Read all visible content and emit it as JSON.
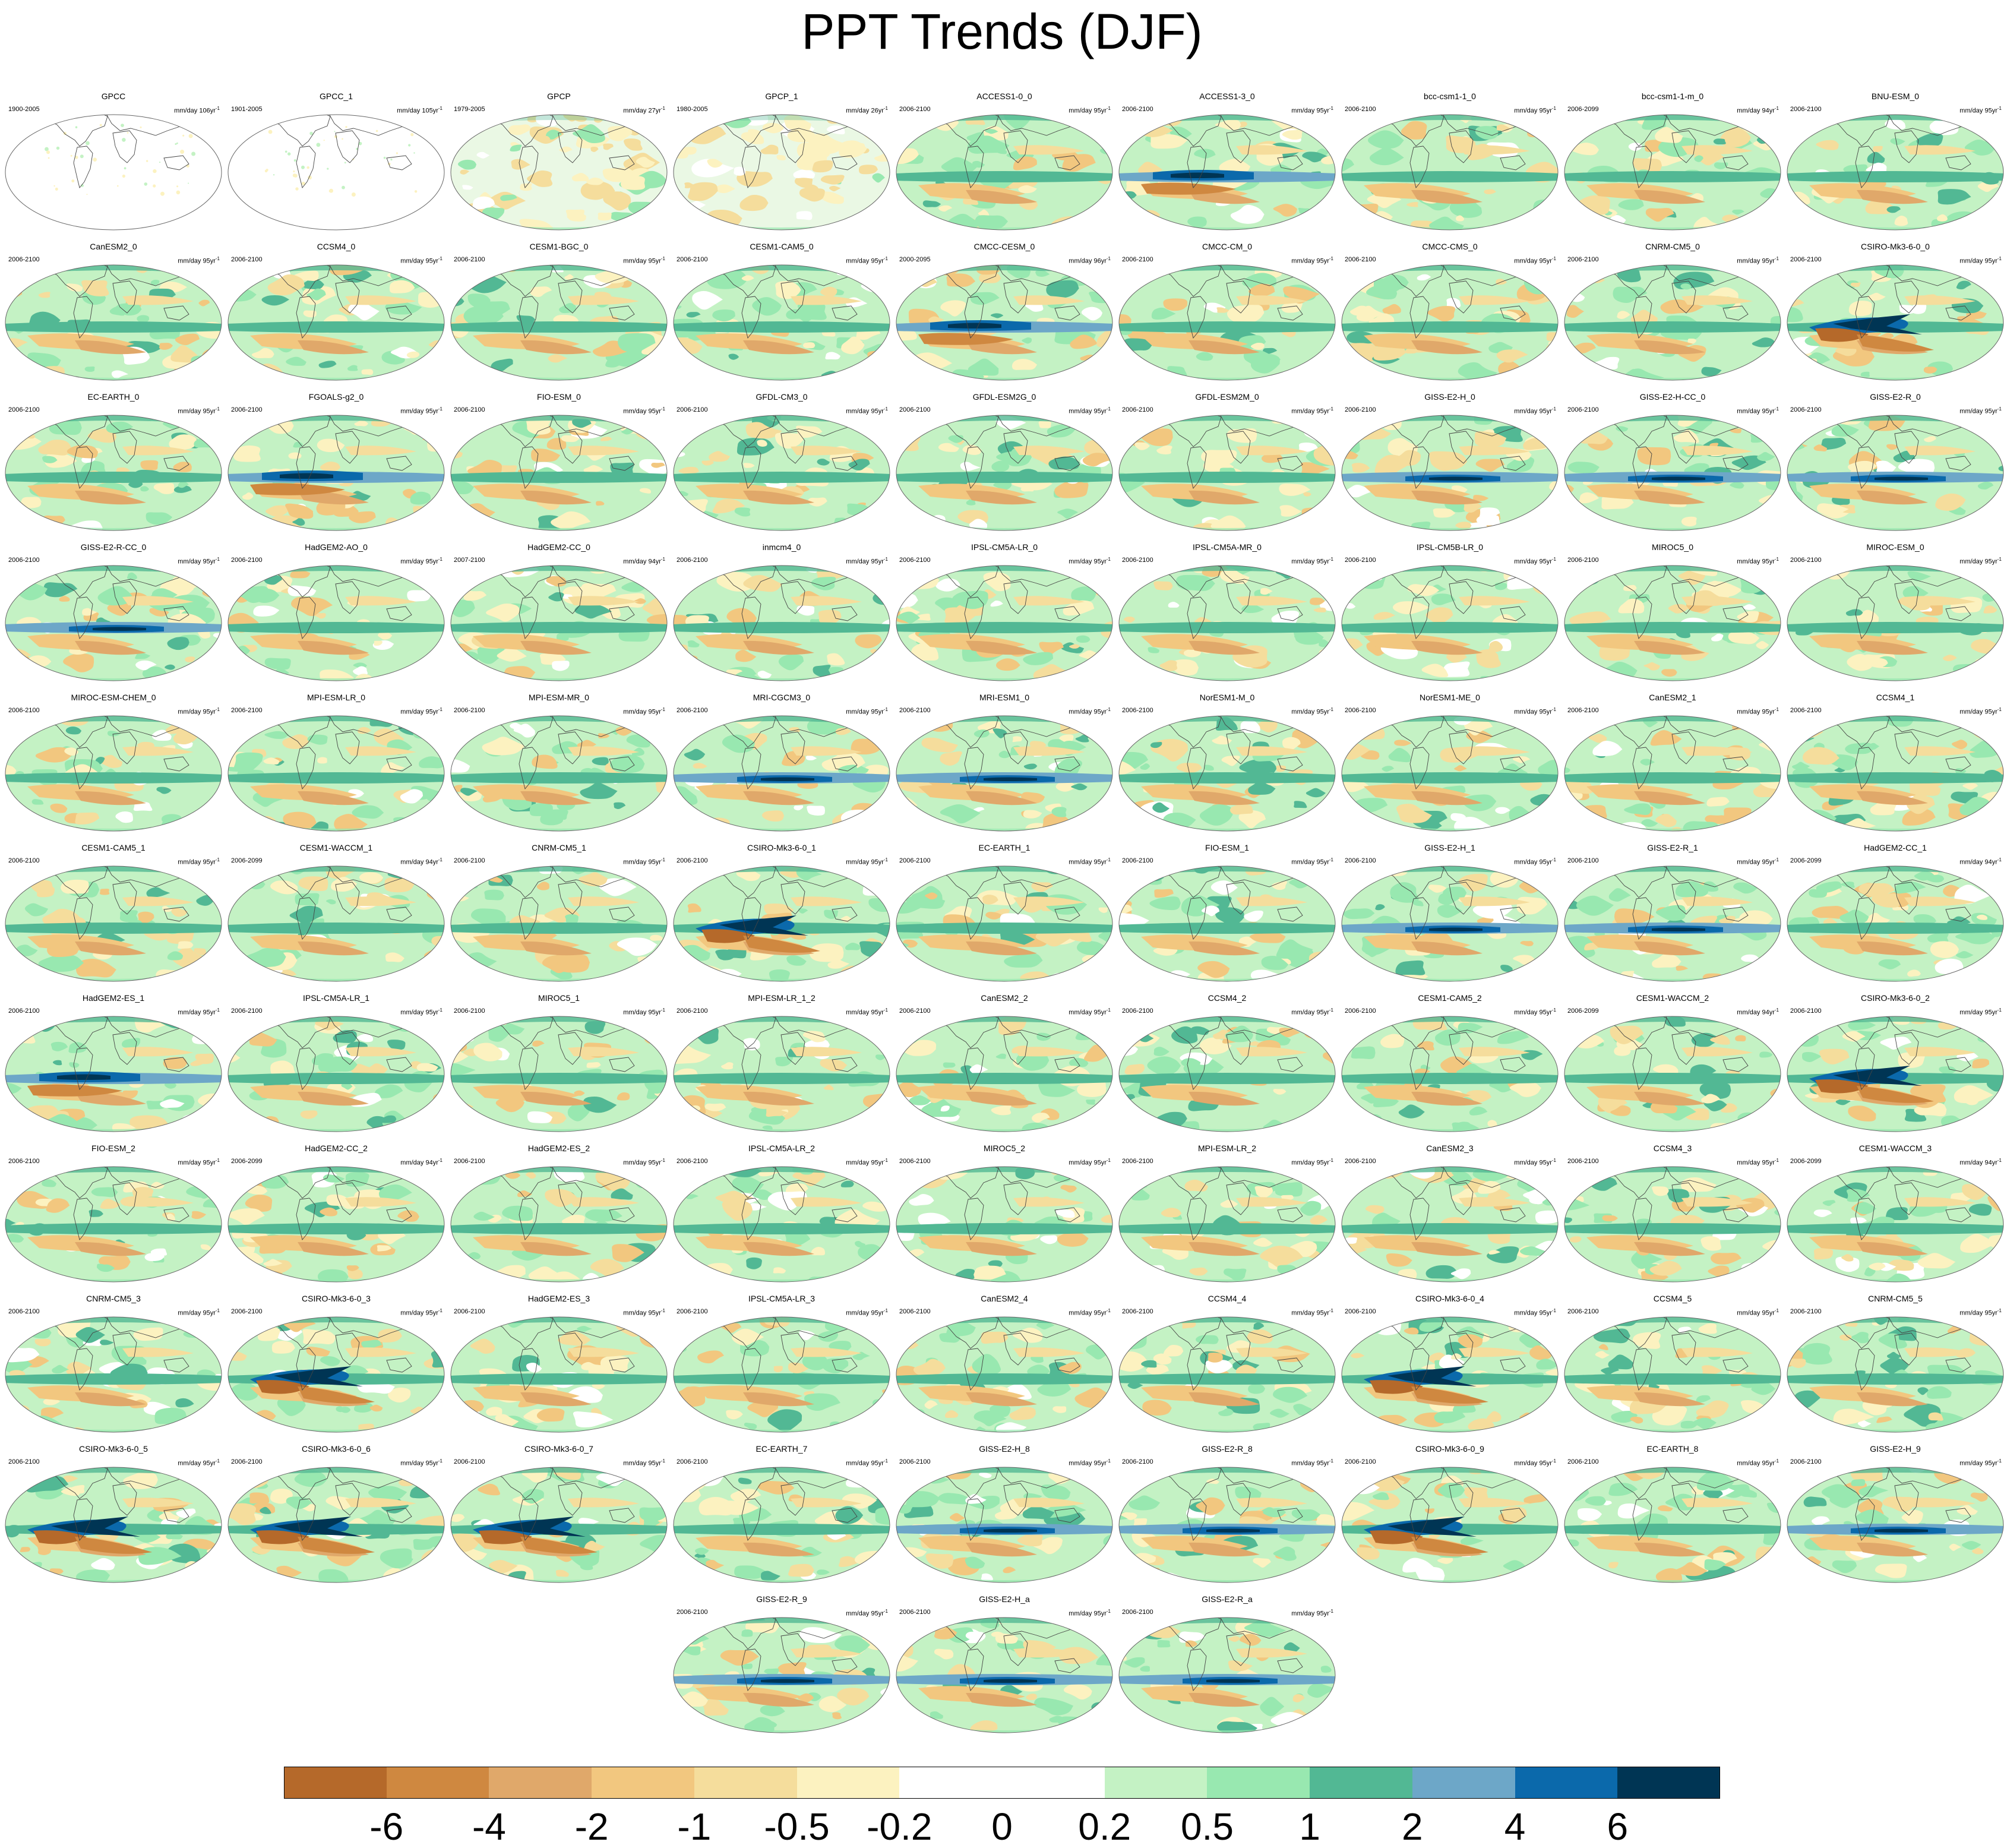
{
  "title": "PPT Trends (DJF)",
  "units_template": "mm/day {n}yr",
  "units_superscript": "-1",
  "colorbar": {
    "colors": [
      "#b5692a",
      "#cf8840",
      "#e0a86a",
      "#f2c77f",
      "#f5dd9c",
      "#fcf2c0",
      "#ffffff",
      "#ffffff",
      "#c4f2c4",
      "#98e8b0",
      "#52b894",
      "#6da7c8",
      "#0b69ab",
      "#003554"
    ],
    "tick_labels": [
      "-6",
      "-4",
      "-2",
      "-1",
      "-0.5",
      "-0.2",
      "0",
      "0.2",
      "0.5",
      "1",
      "2",
      "4",
      "6"
    ]
  },
  "panels": [
    {
      "name": "GPCC",
      "period": "1900-2005",
      "years": "106",
      "style": "obs"
    },
    {
      "name": "GPCC_1",
      "period": "1901-2005",
      "years": "105",
      "style": "obs"
    },
    {
      "name": "GPCP",
      "period": "1979-2005",
      "years": "27",
      "style": "gpcp"
    },
    {
      "name": "GPCP_1",
      "period": "1980-2005",
      "years": "26",
      "style": "gpcp"
    },
    {
      "name": "ACCESS1-0_0",
      "period": "2006-2100",
      "years": "95",
      "style": "model"
    },
    {
      "name": "ACCESS1-3_0",
      "period": "2006-2100",
      "years": "95",
      "style": "strong"
    },
    {
      "name": "bcc-csm1-1_0",
      "period": "2006-2100",
      "years": "95",
      "style": "model"
    },
    {
      "name": "bcc-csm1-1-m_0",
      "period": "2006-2099",
      "years": "94",
      "style": "model"
    },
    {
      "name": "BNU-ESM_0",
      "period": "2006-2100",
      "years": "95",
      "style": "model"
    },
    {
      "name": "CanESM2_0",
      "period": "2006-2100",
      "years": "95",
      "style": "model"
    },
    {
      "name": "CCSM4_0",
      "period": "2006-2100",
      "years": "95",
      "style": "model"
    },
    {
      "name": "CESM1-BGC_0",
      "period": "2006-2100",
      "years": "95",
      "style": "model"
    },
    {
      "name": "CESM1-CAM5_0",
      "period": "2006-2100",
      "years": "95",
      "style": "model"
    },
    {
      "name": "CMCC-CESM_0",
      "period": "2000-2095",
      "years": "96",
      "style": "strong"
    },
    {
      "name": "CMCC-CM_0",
      "period": "2006-2100",
      "years": "95",
      "style": "model"
    },
    {
      "name": "CMCC-CMS_0",
      "period": "2006-2100",
      "years": "95",
      "style": "model"
    },
    {
      "name": "CNRM-CM5_0",
      "period": "2006-2100",
      "years": "95",
      "style": "model"
    },
    {
      "name": "CSIRO-Mk3-6-0_0",
      "period": "2006-2100",
      "years": "95",
      "style": "csiro"
    },
    {
      "name": "EC-EARTH_0",
      "period": "2006-2100",
      "years": "95",
      "style": "model"
    },
    {
      "name": "FGOALS-g2_0",
      "period": "2006-2100",
      "years": "95",
      "style": "strong"
    },
    {
      "name": "FIO-ESM_0",
      "period": "2006-2100",
      "years": "95",
      "style": "model"
    },
    {
      "name": "GFDL-CM3_0",
      "period": "2006-2100",
      "years": "95",
      "style": "model"
    },
    {
      "name": "GFDL-ESM2G_0",
      "period": "2006-2100",
      "years": "95",
      "style": "model"
    },
    {
      "name": "GFDL-ESM2M_0",
      "period": "2006-2100",
      "years": "95",
      "style": "model"
    },
    {
      "name": "GISS-E2-H_0",
      "period": "2006-2100",
      "years": "95",
      "style": "giss"
    },
    {
      "name": "GISS-E2-H-CC_0",
      "period": "2006-2100",
      "years": "95",
      "style": "giss"
    },
    {
      "name": "GISS-E2-R_0",
      "period": "2006-2100",
      "years": "95",
      "style": "giss"
    },
    {
      "name": "GISS-E2-R-CC_0",
      "period": "2006-2100",
      "years": "95",
      "style": "giss"
    },
    {
      "name": "HadGEM2-AO_0",
      "period": "2006-2100",
      "years": "95",
      "style": "model"
    },
    {
      "name": "HadGEM2-CC_0",
      "period": "2007-2100",
      "years": "94",
      "style": "model"
    },
    {
      "name": "inmcm4_0",
      "period": "2006-2100",
      "years": "95",
      "style": "model"
    },
    {
      "name": "IPSL-CM5A-LR_0",
      "period": "2006-2100",
      "years": "95",
      "style": "model"
    },
    {
      "name": "IPSL-CM5A-MR_0",
      "period": "2006-2100",
      "years": "95",
      "style": "model"
    },
    {
      "name": "IPSL-CM5B-LR_0",
      "period": "2006-2100",
      "years": "95",
      "style": "model"
    },
    {
      "name": "MIROC5_0",
      "period": "2006-2100",
      "years": "95",
      "style": "model"
    },
    {
      "name": "MIROC-ESM_0",
      "period": "2006-2100",
      "years": "95",
      "style": "model"
    },
    {
      "name": "MIROC-ESM-CHEM_0",
      "period": "2006-2100",
      "years": "95",
      "style": "model"
    },
    {
      "name": "MPI-ESM-LR_0",
      "period": "2006-2100",
      "years": "95",
      "style": "model"
    },
    {
      "name": "MPI-ESM-MR_0",
      "period": "2006-2100",
      "years": "95",
      "style": "model"
    },
    {
      "name": "MRI-CGCM3_0",
      "period": "2006-2100",
      "years": "95",
      "style": "giss"
    },
    {
      "name": "MRI-ESM1_0",
      "period": "2006-2100",
      "years": "95",
      "style": "giss"
    },
    {
      "name": "NorESM1-M_0",
      "period": "2006-2100",
      "years": "95",
      "style": "model"
    },
    {
      "name": "NorESM1-ME_0",
      "period": "2006-2100",
      "years": "95",
      "style": "model"
    },
    {
      "name": "CanESM2_1",
      "period": "2006-2100",
      "years": "95",
      "style": "model"
    },
    {
      "name": "CCSM4_1",
      "period": "2006-2100",
      "years": "95",
      "style": "model"
    },
    {
      "name": "CESM1-CAM5_1",
      "period": "2006-2100",
      "years": "95",
      "style": "model"
    },
    {
      "name": "CESM1-WACCM_1",
      "period": "2006-2099",
      "years": "94",
      "style": "model"
    },
    {
      "name": "CNRM-CM5_1",
      "period": "2006-2100",
      "years": "95",
      "style": "model"
    },
    {
      "name": "CSIRO-Mk3-6-0_1",
      "period": "2006-2100",
      "years": "95",
      "style": "csiro"
    },
    {
      "name": "EC-EARTH_1",
      "period": "2006-2100",
      "years": "95",
      "style": "model"
    },
    {
      "name": "FIO-ESM_1",
      "period": "2006-2100",
      "years": "95",
      "style": "model"
    },
    {
      "name": "GISS-E2-H_1",
      "period": "2006-2100",
      "years": "95",
      "style": "giss"
    },
    {
      "name": "GISS-E2-R_1",
      "period": "2006-2100",
      "years": "95",
      "style": "giss"
    },
    {
      "name": "HadGEM2-CC_1",
      "period": "2006-2099",
      "years": "94",
      "style": "model"
    },
    {
      "name": "HadGEM2-ES_1",
      "period": "2006-2100",
      "years": "95",
      "style": "strong"
    },
    {
      "name": "IPSL-CM5A-LR_1",
      "period": "2006-2100",
      "years": "95",
      "style": "model"
    },
    {
      "name": "MIROC5_1",
      "period": "2006-2100",
      "years": "95",
      "style": "model"
    },
    {
      "name": "MPI-ESM-LR_1_2",
      "period": "2006-2100",
      "years": "95",
      "style": "model"
    },
    {
      "name": "CanESM2_2",
      "period": "2006-2100",
      "years": "95",
      "style": "model"
    },
    {
      "name": "CCSM4_2",
      "period": "2006-2100",
      "years": "95",
      "style": "model"
    },
    {
      "name": "CESM1-CAM5_2",
      "period": "2006-2100",
      "years": "95",
      "style": "model"
    },
    {
      "name": "CESM1-WACCM_2",
      "period": "2006-2099",
      "years": "94",
      "style": "model"
    },
    {
      "name": "CSIRO-Mk3-6-0_2",
      "period": "2006-2100",
      "years": "95",
      "style": "csiro"
    },
    {
      "name": "FIO-ESM_2",
      "period": "2006-2100",
      "years": "95",
      "style": "model"
    },
    {
      "name": "HadGEM2-CC_2",
      "period": "2006-2099",
      "years": "94",
      "style": "model"
    },
    {
      "name": "HadGEM2-ES_2",
      "period": "2006-2100",
      "years": "95",
      "style": "model"
    },
    {
      "name": "IPSL-CM5A-LR_2",
      "period": "2006-2100",
      "years": "95",
      "style": "model"
    },
    {
      "name": "MIROC5_2",
      "period": "2006-2100",
      "years": "95",
      "style": "model"
    },
    {
      "name": "MPI-ESM-LR_2",
      "period": "2006-2100",
      "years": "95",
      "style": "model"
    },
    {
      "name": "CanESM2_3",
      "period": "2006-2100",
      "years": "95",
      "style": "model"
    },
    {
      "name": "CCSM4_3",
      "period": "2006-2100",
      "years": "95",
      "style": "model"
    },
    {
      "name": "CESM1-WACCM_3",
      "period": "2006-2099",
      "years": "94",
      "style": "model"
    },
    {
      "name": "CNRM-CM5_3",
      "period": "2006-2100",
      "years": "95",
      "style": "model"
    },
    {
      "name": "CSIRO-Mk3-6-0_3",
      "period": "2006-2100",
      "years": "95",
      "style": "csiro"
    },
    {
      "name": "HadGEM2-ES_3",
      "period": "2006-2100",
      "years": "95",
      "style": "model"
    },
    {
      "name": "IPSL-CM5A-LR_3",
      "period": "2006-2100",
      "years": "95",
      "style": "model"
    },
    {
      "name": "CanESM2_4",
      "period": "2006-2100",
      "years": "95",
      "style": "model"
    },
    {
      "name": "CCSM4_4",
      "period": "2006-2100",
      "years": "95",
      "style": "model"
    },
    {
      "name": "CSIRO-Mk3-6-0_4",
      "period": "2006-2100",
      "years": "95",
      "style": "csiro"
    },
    {
      "name": "CCSM4_5",
      "period": "2006-2100",
      "years": "95",
      "style": "model"
    },
    {
      "name": "CNRM-CM5_5",
      "period": "2006-2100",
      "years": "95",
      "style": "model"
    },
    {
      "name": "CSIRO-Mk3-6-0_5",
      "period": "2006-2100",
      "years": "95",
      "style": "csiro"
    },
    {
      "name": "CSIRO-Mk3-6-0_6",
      "period": "2006-2100",
      "years": "95",
      "style": "csiro"
    },
    {
      "name": "CSIRO-Mk3-6-0_7",
      "period": "2006-2100",
      "years": "95",
      "style": "csiro"
    },
    {
      "name": "EC-EARTH_7",
      "period": "2006-2100",
      "years": "95",
      "style": "model"
    },
    {
      "name": "GISS-E2-H_8",
      "period": "2006-2100",
      "years": "95",
      "style": "giss"
    },
    {
      "name": "GISS-E2-R_8",
      "period": "2006-2100",
      "years": "95",
      "style": "giss"
    },
    {
      "name": "CSIRO-Mk3-6-0_9",
      "period": "2006-2100",
      "years": "95",
      "style": "csiro"
    },
    {
      "name": "EC-EARTH_8",
      "period": "2006-2100",
      "years": "95",
      "style": "model"
    },
    {
      "name": "GISS-E2-H_9",
      "period": "2006-2100",
      "years": "95",
      "style": "giss"
    },
    {
      "name": "GISS-E2-R_9",
      "period": "2006-2100",
      "years": "95",
      "style": "giss"
    },
    {
      "name": "GISS-E2-H_a",
      "period": "2006-2100",
      "years": "95",
      "style": "giss"
    },
    {
      "name": "GISS-E2-R_a",
      "period": "2006-2100",
      "years": "95",
      "style": "giss"
    }
  ]
}
